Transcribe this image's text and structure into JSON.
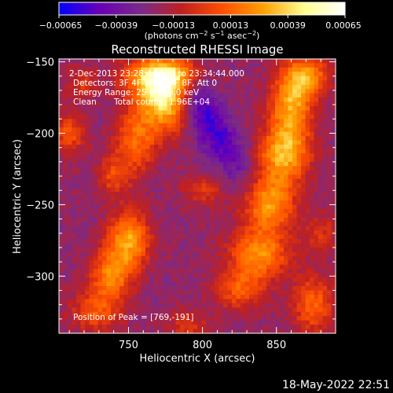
{
  "chart_data": {
    "type": "heatmap",
    "title": "Reconstructed RHESSI Image",
    "xlabel": "Heliocentric X (arcsec)",
    "ylabel": "Heliocentric Y (arcsec)",
    "xlim": [
      703,
      890
    ],
    "ylim": [
      -340,
      -148
    ],
    "x_ticks": [
      750,
      800,
      850
    ],
    "x_tick_labels": [
      "750",
      "800",
      "850"
    ],
    "y_ticks": [
      -150,
      -200,
      -250,
      -300
    ],
    "y_tick_labels": [
      "−150",
      "−200",
      "−250",
      "−300"
    ],
    "colorbar": {
      "range": [
        -0.00065,
        0.00065
      ],
      "tick_labels": [
        "−0.00065",
        "−0.00039",
        "−0.00013",
        "0.00013",
        "0.00039",
        "0.00065"
      ],
      "units_main": "(photons cm",
      "units_exp1": "−2",
      "units_mid": " s",
      "units_exp2": "−1",
      "units_mid2": " asec",
      "units_exp3": "−2",
      "units_end": ")",
      "colors": [
        "#0000ff",
        "#6a00b4",
        "#7a2a8a",
        "#c02020",
        "#ff5000",
        "#ffa000",
        "#ffff90",
        "#ffffff"
      ]
    },
    "peak": [
      769,
      -191
    ],
    "sources": [
      {
        "x": 775,
        "y": -175,
        "amp": 0.00065,
        "sx": 12,
        "sy": 16
      },
      {
        "x": 765,
        "y": -160,
        "amp": 0.00045,
        "sx": 14,
        "sy": 10
      },
      {
        "x": 783,
        "y": -158,
        "amp": 0.00035,
        "sx": 10,
        "sy": 8
      },
      {
        "x": 755,
        "y": -205,
        "amp": 0.00035,
        "sx": 10,
        "sy": 16
      },
      {
        "x": 740,
        "y": -230,
        "amp": 0.00025,
        "sx": 8,
        "sy": 10
      },
      {
        "x": 750,
        "y": -275,
        "amp": 0.0005,
        "sx": 10,
        "sy": 14
      },
      {
        "x": 738,
        "y": -300,
        "amp": 0.0004,
        "sx": 10,
        "sy": 12
      },
      {
        "x": 728,
        "y": -325,
        "amp": 0.0003,
        "sx": 12,
        "sy": 10
      },
      {
        "x": 860,
        "y": -180,
        "amp": 0.0005,
        "sx": 10,
        "sy": 18
      },
      {
        "x": 872,
        "y": -160,
        "amp": 0.0004,
        "sx": 10,
        "sy": 10
      },
      {
        "x": 855,
        "y": -215,
        "amp": 0.0005,
        "sx": 12,
        "sy": 14
      },
      {
        "x": 845,
        "y": -250,
        "amp": 0.0005,
        "sx": 12,
        "sy": 14
      },
      {
        "x": 838,
        "y": -285,
        "amp": 0.00045,
        "sx": 14,
        "sy": 12
      },
      {
        "x": 825,
        "y": -310,
        "amp": 0.0003,
        "sx": 12,
        "sy": 10
      },
      {
        "x": 875,
        "y": -320,
        "amp": 0.00035,
        "sx": 10,
        "sy": 14
      },
      {
        "x": 710,
        "y": -200,
        "amp": 0.0003,
        "sx": 8,
        "sy": 10
      },
      {
        "x": 718,
        "y": -165,
        "amp": 0.0002,
        "sx": 8,
        "sy": 8
      },
      {
        "x": 800,
        "y": -240,
        "amp": 0.0002,
        "sx": 10,
        "sy": 8
      },
      {
        "x": 790,
        "y": -335,
        "amp": 0.0002,
        "sx": 10,
        "sy": 8
      },
      {
        "x": 880,
        "y": -270,
        "amp": 0.0002,
        "sx": 8,
        "sy": 10
      }
    ],
    "baseline": -0.00022,
    "noise_amp": 0.00012
  },
  "annotations": {
    "time_range": "2-Dec-2013 23:28:44.000 to 23:34:44.000",
    "detectors": "Detectors: 3F 4F 5F 6F 7F 8F, Att 0",
    "energy_range": "Energy Range: 25.0 - 50.0 keV",
    "clean_label": "Clean",
    "total_counts": "Total counts: 1.96E+04",
    "peak_position": "Position of Peak = [769,-191]"
  },
  "timestamp": "18-May-2022 22:51"
}
